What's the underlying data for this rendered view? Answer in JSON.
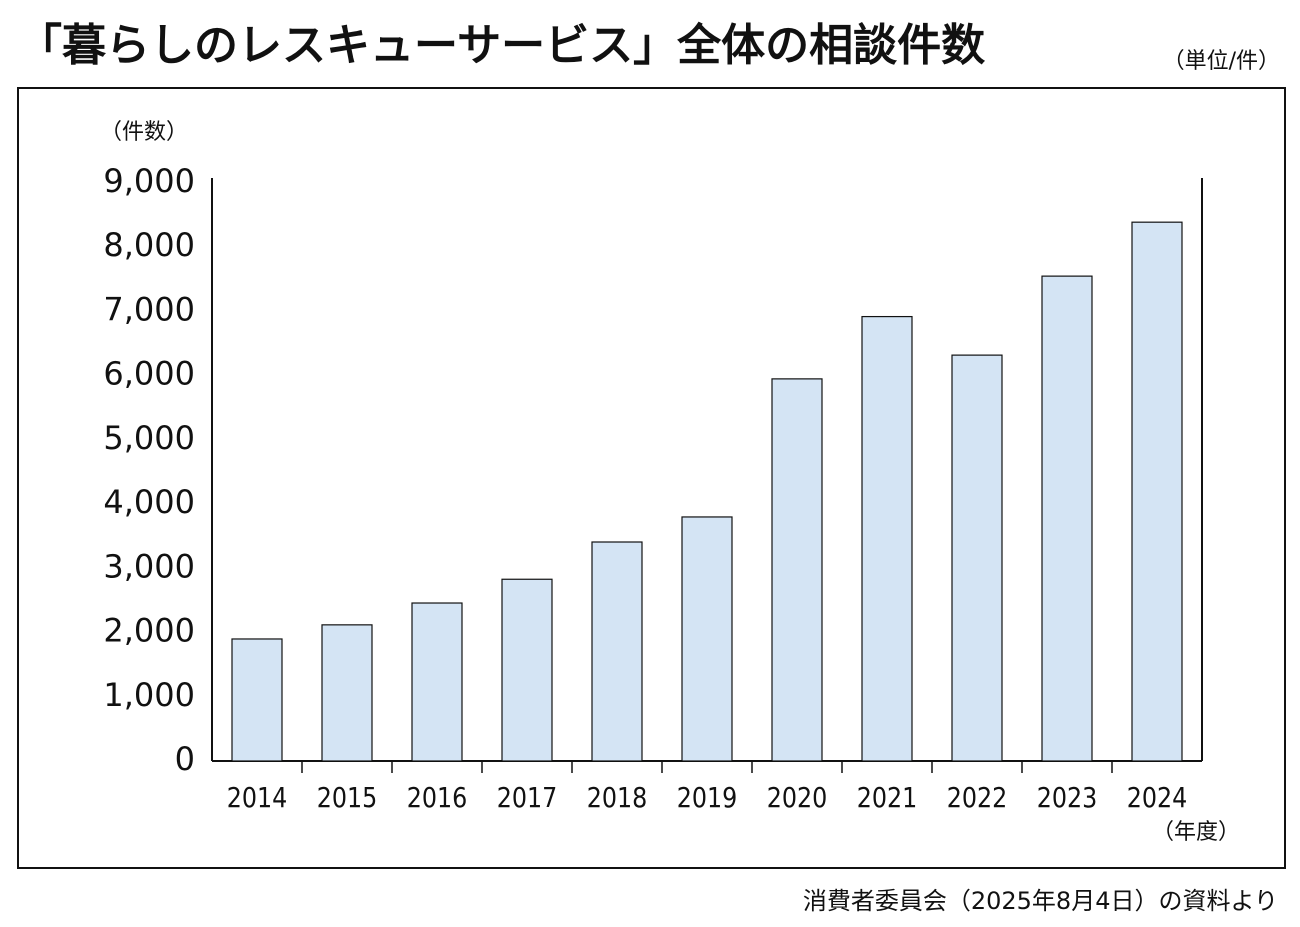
{
  "chart_data": {
    "type": "bar",
    "title": "「暮らしのレスキューサービス」全体の相談件数",
    "unit_note": "（単位/件）",
    "y_axis_label": "（件数）",
    "x_axis_label": "（年度）",
    "source": "消費者委員会（2025年8月4日）の資料より",
    "categories": [
      "2014",
      "2015",
      "2016",
      "2017",
      "2018",
      "2019",
      "2020",
      "2021",
      "2022",
      "2023",
      "2024"
    ],
    "values": [
      1900,
      2120,
      2460,
      2830,
      3410,
      3800,
      5950,
      6920,
      6320,
      7550,
      8390
    ],
    "color": "#d4e4f4",
    "ylim": [
      0,
      9000
    ],
    "yticks": [
      0,
      {
        "value": 1000,
        "label": "1,000"
      },
      {
        "value": 2000,
        "label": "2,000"
      },
      {
        "value": 3000,
        "label": "3,000"
      },
      {
        "value": 4000,
        "label": "4,000"
      },
      {
        "value": 5000,
        "label": "5,000"
      },
      {
        "value": 6000,
        "label": "6,000"
      },
      {
        "value": 7000,
        "label": "7,000"
      },
      {
        "value": 8000,
        "label": "8,000"
      },
      {
        "value": 9000,
        "label": "9,000"
      }
    ],
    "grid": false
  }
}
